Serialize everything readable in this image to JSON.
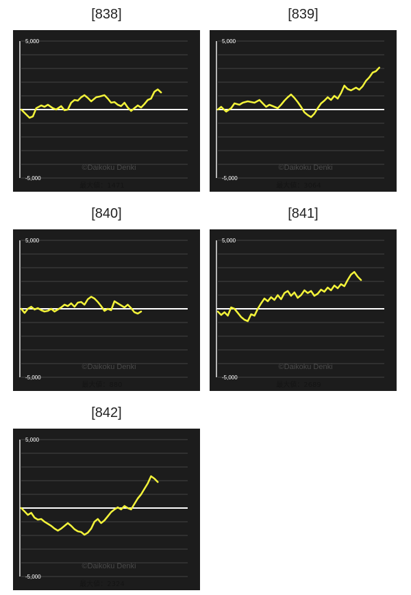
{
  "y_top_label": "5,000",
  "y_bottom_label": "-5,000",
  "copyright": "©Daikoku Denki",
  "colors": {
    "panel_bg": "#1c1c1c",
    "grid": "#444444",
    "baseline": "#ffffff",
    "line": "#f2f23a",
    "axis": "#e8e8e8"
  },
  "chart_data": [
    {
      "type": "line",
      "title": "[838]",
      "max_label": "最大値：1471",
      "ylim": [
        -5000,
        5000
      ],
      "x_max": 100,
      "grid": true,
      "series": [
        {
          "values": [
            [
              0,
              0
            ],
            [
              5,
              -600
            ],
            [
              7,
              -500
            ],
            [
              9,
              100
            ],
            [
              12,
              300
            ],
            [
              14,
              200
            ],
            [
              16,
              350
            ],
            [
              19,
              100
            ],
            [
              21,
              0
            ],
            [
              24,
              250
            ],
            [
              26,
              -50
            ],
            [
              28,
              0
            ],
            [
              30,
              500
            ],
            [
              32,
              700
            ],
            [
              34,
              650
            ],
            [
              36,
              900
            ],
            [
              38,
              1050
            ],
            [
              40,
              850
            ],
            [
              42,
              600
            ],
            [
              45,
              900
            ],
            [
              47,
              950
            ],
            [
              50,
              1050
            ],
            [
              52,
              800
            ],
            [
              54,
              500
            ],
            [
              56,
              550
            ],
            [
              58,
              350
            ],
            [
              60,
              250
            ],
            [
              62,
              500
            ],
            [
              64,
              150
            ],
            [
              66,
              -100
            ],
            [
              68,
              100
            ],
            [
              70,
              300
            ],
            [
              72,
              150
            ],
            [
              74,
              400
            ],
            [
              76,
              700
            ],
            [
              78,
              800
            ],
            [
              80,
              1300
            ],
            [
              82,
              1471
            ],
            [
              84,
              1250
            ]
          ]
        }
      ]
    },
    {
      "type": "line",
      "title": "[839]",
      "max_label": "最大値：3064",
      "ylim": [
        -5000,
        5000
      ],
      "x_max": 100,
      "grid": true,
      "series": [
        {
          "values": [
            [
              0,
              0
            ],
            [
              2,
              200
            ],
            [
              5,
              -150
            ],
            [
              8,
              100
            ],
            [
              10,
              450
            ],
            [
              13,
              350
            ],
            [
              15,
              500
            ],
            [
              18,
              600
            ],
            [
              20,
              550
            ],
            [
              22,
              500
            ],
            [
              25,
              700
            ],
            [
              27,
              450
            ],
            [
              29,
              200
            ],
            [
              31,
              350
            ],
            [
              33,
              250
            ],
            [
              36,
              100
            ],
            [
              38,
              350
            ],
            [
              40,
              650
            ],
            [
              42,
              900
            ],
            [
              44,
              1100
            ],
            [
              46,
              850
            ],
            [
              48,
              550
            ],
            [
              50,
              200
            ],
            [
              52,
              -200
            ],
            [
              54,
              -400
            ],
            [
              56,
              -550
            ],
            [
              58,
              -300
            ],
            [
              60,
              100
            ],
            [
              62,
              450
            ],
            [
              64,
              650
            ],
            [
              66,
              900
            ],
            [
              68,
              700
            ],
            [
              70,
              1000
            ],
            [
              72,
              800
            ],
            [
              74,
              1200
            ],
            [
              76,
              1750
            ],
            [
              78,
              1500
            ],
            [
              80,
              1400
            ],
            [
              83,
              1600
            ],
            [
              85,
              1450
            ],
            [
              87,
              1700
            ],
            [
              89,
              2100
            ],
            [
              91,
              2350
            ],
            [
              93,
              2700
            ],
            [
              95,
              2800
            ],
            [
              97,
              3064
            ]
          ]
        }
      ]
    },
    {
      "type": "line",
      "title": "[840]",
      "max_label": "最大値：880",
      "ylim": [
        -5000,
        5000
      ],
      "x_max": 100,
      "grid": true,
      "series": [
        {
          "values": [
            [
              0,
              0
            ],
            [
              2,
              -300
            ],
            [
              4,
              0
            ],
            [
              6,
              150
            ],
            [
              8,
              -50
            ],
            [
              10,
              50
            ],
            [
              12,
              -100
            ],
            [
              14,
              -200
            ],
            [
              16,
              -150
            ],
            [
              18,
              0
            ],
            [
              20,
              -200
            ],
            [
              22,
              -50
            ],
            [
              24,
              100
            ],
            [
              26,
              300
            ],
            [
              28,
              200
            ],
            [
              30,
              400
            ],
            [
              32,
              150
            ],
            [
              34,
              450
            ],
            [
              36,
              500
            ],
            [
              38,
              300
            ],
            [
              40,
              700
            ],
            [
              42,
              880
            ],
            [
              44,
              750
            ],
            [
              46,
              500
            ],
            [
              48,
              200
            ],
            [
              50,
              -150
            ],
            [
              52,
              0
            ],
            [
              54,
              -100
            ],
            [
              56,
              550
            ],
            [
              58,
              400
            ],
            [
              60,
              250
            ],
            [
              62,
              100
            ],
            [
              64,
              300
            ],
            [
              66,
              50
            ],
            [
              68,
              -250
            ],
            [
              70,
              -350
            ],
            [
              72,
              -200
            ]
          ]
        }
      ]
    },
    {
      "type": "line",
      "title": "[841]",
      "max_label": "最大値：2689",
      "ylim": [
        -5000,
        5000
      ],
      "x_max": 100,
      "grid": true,
      "series": [
        {
          "values": [
            [
              0,
              -200
            ],
            [
              2,
              -450
            ],
            [
              4,
              -250
            ],
            [
              6,
              -500
            ],
            [
              8,
              100
            ],
            [
              10,
              0
            ],
            [
              12,
              -300
            ],
            [
              14,
              -600
            ],
            [
              16,
              -800
            ],
            [
              18,
              -900
            ],
            [
              20,
              -400
            ],
            [
              22,
              -500
            ],
            [
              24,
              0
            ],
            [
              26,
              400
            ],
            [
              28,
              750
            ],
            [
              30,
              550
            ],
            [
              32,
              850
            ],
            [
              34,
              650
            ],
            [
              36,
              1000
            ],
            [
              38,
              700
            ],
            [
              40,
              1150
            ],
            [
              42,
              1300
            ],
            [
              44,
              950
            ],
            [
              46,
              1200
            ],
            [
              48,
              800
            ],
            [
              50,
              1000
            ],
            [
              52,
              1350
            ],
            [
              54,
              1150
            ],
            [
              56,
              1300
            ],
            [
              58,
              950
            ],
            [
              60,
              1100
            ],
            [
              62,
              1400
            ],
            [
              64,
              1250
            ],
            [
              66,
              1550
            ],
            [
              68,
              1350
            ],
            [
              70,
              1700
            ],
            [
              72,
              1500
            ],
            [
              74,
              1800
            ],
            [
              76,
              1650
            ],
            [
              78,
              2100
            ],
            [
              80,
              2500
            ],
            [
              82,
              2689
            ],
            [
              84,
              2350
            ],
            [
              86,
              2100
            ]
          ]
        }
      ]
    },
    {
      "type": "line",
      "title": "[842]",
      "max_label": "最大値：2324",
      "ylim": [
        -5000,
        5000
      ],
      "x_max": 100,
      "grid": true,
      "series": [
        {
          "values": [
            [
              0,
              0
            ],
            [
              2,
              -250
            ],
            [
              4,
              -500
            ],
            [
              6,
              -350
            ],
            [
              8,
              -700
            ],
            [
              10,
              -850
            ],
            [
              12,
              -800
            ],
            [
              14,
              -1000
            ],
            [
              16,
              -1150
            ],
            [
              18,
              -1300
            ],
            [
              20,
              -1500
            ],
            [
              22,
              -1650
            ],
            [
              24,
              -1500
            ],
            [
              26,
              -1300
            ],
            [
              28,
              -1100
            ],
            [
              30,
              -1300
            ],
            [
              32,
              -1550
            ],
            [
              34,
              -1700
            ],
            [
              36,
              -1750
            ],
            [
              38,
              -1950
            ],
            [
              40,
              -1800
            ],
            [
              42,
              -1500
            ],
            [
              44,
              -1000
            ],
            [
              46,
              -800
            ],
            [
              48,
              -1100
            ],
            [
              50,
              -900
            ],
            [
              52,
              -600
            ],
            [
              54,
              -300
            ],
            [
              56,
              -100
            ],
            [
              58,
              50
            ],
            [
              60,
              -100
            ],
            [
              62,
              150
            ],
            [
              64,
              0
            ],
            [
              66,
              -100
            ],
            [
              68,
              300
            ],
            [
              70,
              700
            ],
            [
              72,
              1000
            ],
            [
              74,
              1400
            ],
            [
              76,
              1800
            ],
            [
              78,
              2324
            ],
            [
              80,
              2150
            ],
            [
              82,
              1900
            ]
          ]
        }
      ]
    }
  ]
}
